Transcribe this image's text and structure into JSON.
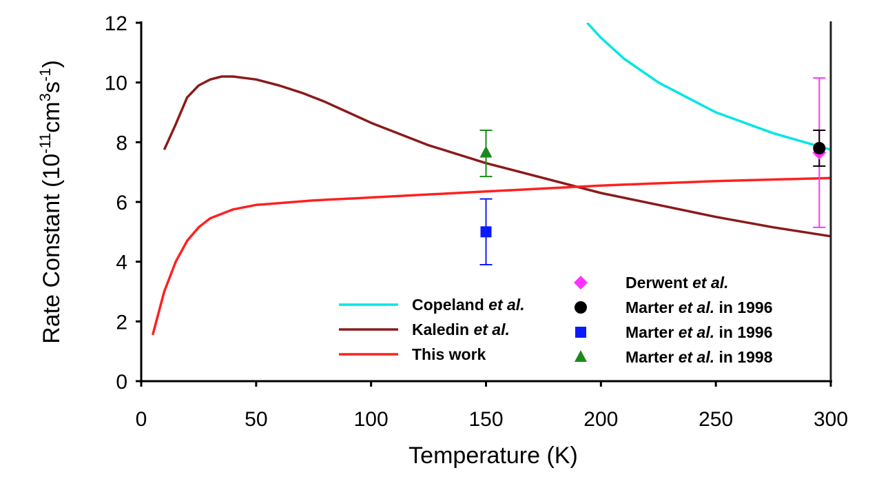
{
  "chart_data": {
    "type": "line",
    "xlabel": "Temperature (K)",
    "ylabel_parts": [
      "Rate Constant (10",
      "-11",
      "cm",
      "3",
      "s",
      "-1",
      ")"
    ],
    "xlim": [
      0,
      300
    ],
    "ylim": [
      0,
      12
    ],
    "xticks": [
      "0",
      "50",
      "100",
      "150",
      "200",
      "250",
      "300"
    ],
    "yticks": [
      "0",
      "2",
      "4",
      "6",
      "8",
      "10",
      "12"
    ],
    "grid": false,
    "series": [
      {
        "name": "Copeland et al.",
        "label": [
          "Copeland ",
          "et al.",
          ""
        ],
        "color": "#00e5e5",
        "x": [
          194,
          200,
          210,
          225,
          250,
          275,
          300
        ],
        "y": [
          12,
          11.5,
          10.8,
          10.0,
          9.0,
          8.3,
          7.75
        ]
      },
      {
        "name": "Kaledin et al.",
        "label": [
          "Kaledin ",
          "et al.",
          ""
        ],
        "color": "#8b1a1a",
        "x": [
          10,
          15,
          20,
          25,
          30,
          35,
          40,
          50,
          60,
          70,
          80,
          90,
          100,
          125,
          150,
          175,
          200,
          225,
          250,
          275,
          300
        ],
        "y": [
          7.75,
          8.6,
          9.5,
          9.9,
          10.1,
          10.2,
          10.2,
          10.1,
          9.9,
          9.65,
          9.35,
          9.0,
          8.65,
          7.9,
          7.3,
          6.8,
          6.3,
          5.9,
          5.5,
          5.15,
          4.85
        ]
      },
      {
        "name": "This work",
        "label": [
          "This work",
          "",
          ""
        ],
        "color": "#ff2020",
        "x": [
          5,
          10,
          15,
          20,
          25,
          30,
          40,
          50,
          75,
          100,
          150,
          200,
          250,
          300
        ],
        "y": [
          1.55,
          3.0,
          4.0,
          4.7,
          5.15,
          5.45,
          5.75,
          5.9,
          6.05,
          6.15,
          6.35,
          6.55,
          6.7,
          6.8
        ]
      }
    ],
    "points": [
      {
        "name": "Derwent et al.",
        "label": [
          "Derwent ",
          "et al.",
          ""
        ],
        "marker": "diamond",
        "color": "#ff33ff",
        "x": 295,
        "y": 7.65,
        "err_low": 5.15,
        "err_high": 10.15
      },
      {
        "name": "Marter et al. in 1996",
        "label": [
          "Marter ",
          "et al.",
          " in 1996"
        ],
        "marker": "circle",
        "color": "#000000",
        "x": 295,
        "y": 7.8,
        "err_low": 7.2,
        "err_high": 8.4
      },
      {
        "name": "Marter et al. in 1996",
        "label": [
          "Marter ",
          "et al.",
          " in 1996"
        ],
        "marker": "square",
        "color": "#0a1aff",
        "x": 150,
        "y": 5.0,
        "err_low": 3.9,
        "err_high": 6.1
      },
      {
        "name": "Marter et al. in 1998",
        "label": [
          "Marter ",
          "et al.",
          " in 1998"
        ],
        "marker": "triangle",
        "color": "#1a8a1a",
        "x": 150,
        "y": 7.65,
        "err_low": 6.85,
        "err_high": 8.4
      }
    ]
  }
}
